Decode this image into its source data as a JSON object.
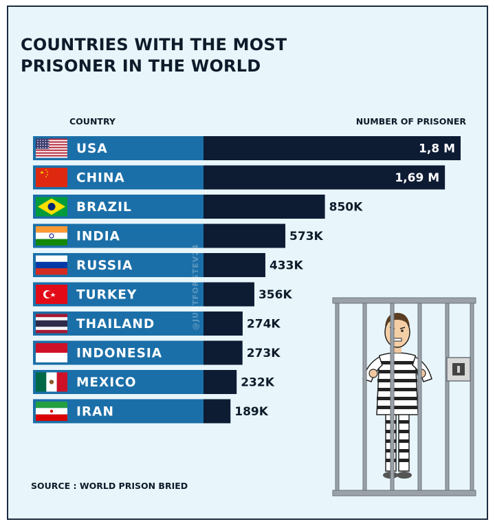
{
  "title": "COUNTRIES WITH THE MOST PRISONER IN THE WORLD",
  "headers": {
    "country": "COUNTRY",
    "number": "NUMBER OF PRISONER"
  },
  "watermark": "@JUSTFORSTEV24",
  "source": "SOURCE : WORLD PRISON BRIED",
  "colors": {
    "background": "#e8f6fb",
    "country_band": "#1b6fa8",
    "value_bar": "#0d1b33",
    "text_dark": "#0d1b2a"
  },
  "chart_data": {
    "type": "bar",
    "orientation": "horizontal",
    "title": "COUNTRIES WITH THE MOST PRISONER IN THE WORLD",
    "xlabel": "NUMBER OF PRISONER",
    "ylabel": "COUNTRY",
    "categories": [
      "USA",
      "CHINA",
      "BRAZIL",
      "INDIA",
      "RUSSIA",
      "TURKEY",
      "THAILAND",
      "INDONESIA",
      "MEXICO",
      "IRAN"
    ],
    "values": [
      1800000,
      1690000,
      850000,
      573000,
      433000,
      356000,
      274000,
      273000,
      232000,
      189000
    ],
    "labels": [
      "1,8 M",
      "1,69 M",
      "850K",
      "573K",
      "433K",
      "356K",
      "274K",
      "273K",
      "232K",
      "189K"
    ],
    "flags": [
      "usa-flag",
      "china-flag",
      "brazil-flag",
      "india-flag",
      "russia-flag",
      "turkey-flag",
      "thailand-flag",
      "indonesia-flag",
      "mexico-flag",
      "iran-flag"
    ]
  }
}
